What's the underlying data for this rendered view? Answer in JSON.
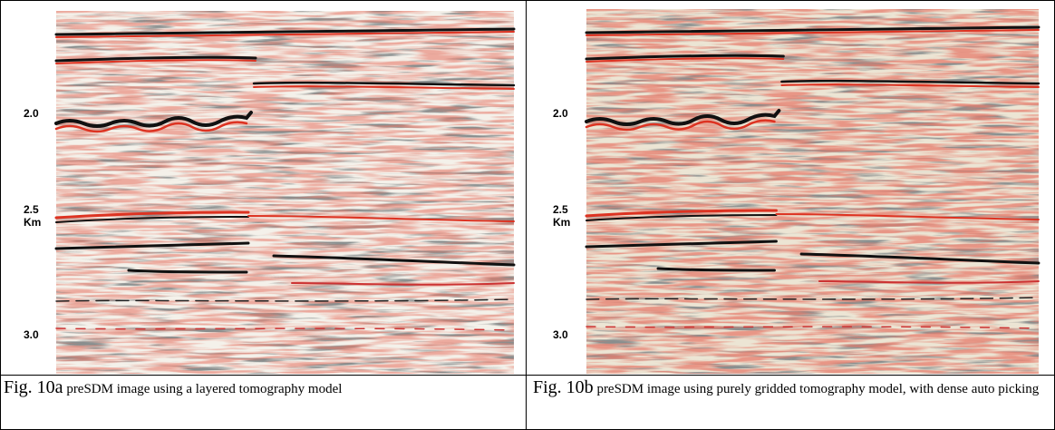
{
  "panels": [
    {
      "axis_labels": [
        "2.0",
        "2.5",
        "Km",
        "3.0"
      ],
      "caption_label": "Fig. 10a",
      "caption_text": "preSDM image using a layered tomography model"
    },
    {
      "axis_labels": [
        "2.0",
        "2.5",
        "Km",
        "3.0"
      ],
      "caption_label": "Fig. 10b",
      "caption_text": "preSDM image using purely gridded tomography model, with dense auto picking"
    }
  ]
}
